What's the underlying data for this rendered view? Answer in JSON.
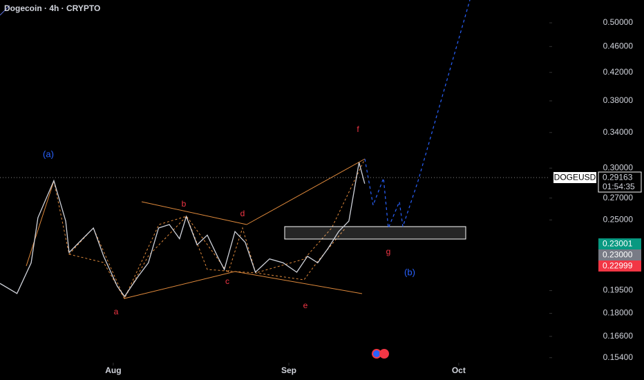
{
  "chart_data": {
    "type": "line",
    "title": "Dogecoin · 4h · CRYPTO",
    "log_scale": true,
    "series": [
      {
        "name": "DOGEUSD",
        "color": "#d1d4dc",
        "x": [
          193,
          196.0,
          198.5,
          199.7,
          202.5,
          204.6,
          205.2,
          207.6,
          209.5,
          211.3,
          213.7,
          215.0,
          217.4,
          219.2,
          221.0,
          222.9,
          224.7,
          225.9,
          227.8,
          229.6,
          231.4,
          232.6,
          234.5,
          236.3,
          238.1,
          240.6,
          243.0,
          245.4,
          247.3,
          249.1,
          250.9,
          252.8,
          254.6,
          256.4,
          257.4
        ],
        "values": [
          0.2,
          0.193,
          0.215,
          0.252,
          0.287,
          0.249,
          0.223,
          0.234,
          0.243,
          0.22,
          0.198,
          0.191,
          0.205,
          0.215,
          0.243,
          0.246,
          0.234,
          0.253,
          0.229,
          0.237,
          0.22,
          0.21,
          0.24,
          0.231,
          0.208,
          0.218,
          0.215,
          0.208,
          0.22,
          0.215,
          0.226,
          0.24,
          0.249,
          0.306,
          0.284
        ]
      }
    ],
    "xlim": [
      193,
      290
    ],
    "xticks": [
      {
        "value": 213,
        "label": "Aug"
      },
      {
        "value": 244,
        "label": "Sep"
      },
      {
        "value": 274,
        "label": "Oct"
      }
    ],
    "ylim": [
      0.1513,
      0.5418
    ],
    "yticks": [
      {
        "value": 0.5,
        "label": "0.50000"
      },
      {
        "value": 0.46,
        "label": "0.46000"
      },
      {
        "value": 0.42,
        "label": "0.42000"
      },
      {
        "value": 0.38,
        "label": "0.38000"
      },
      {
        "value": 0.34,
        "label": "0.34000"
      },
      {
        "value": 0.3,
        "label": "0.30000"
      },
      {
        "value": 0.27,
        "label": "0.27000"
      },
      {
        "value": 0.25,
        "label": "0.25000"
      },
      {
        "value": 0.195,
        "label": "0.19500"
      },
      {
        "value": 0.18,
        "label": "0.18000"
      },
      {
        "value": 0.166,
        "label": "0.16600"
      },
      {
        "value": 0.154,
        "label": "0.15400"
      }
    ],
    "wave_labels": [
      "(a)",
      "a",
      "b",
      "c",
      "d",
      "e",
      "f",
      "g",
      "(b)"
    ],
    "price_tags": {
      "symbol": "DOGEUSD",
      "last": "0.29163",
      "countdown": "01:54:35",
      "ask": "0.23001",
      "mid": "0.23000",
      "bid": "0.22999"
    }
  }
}
